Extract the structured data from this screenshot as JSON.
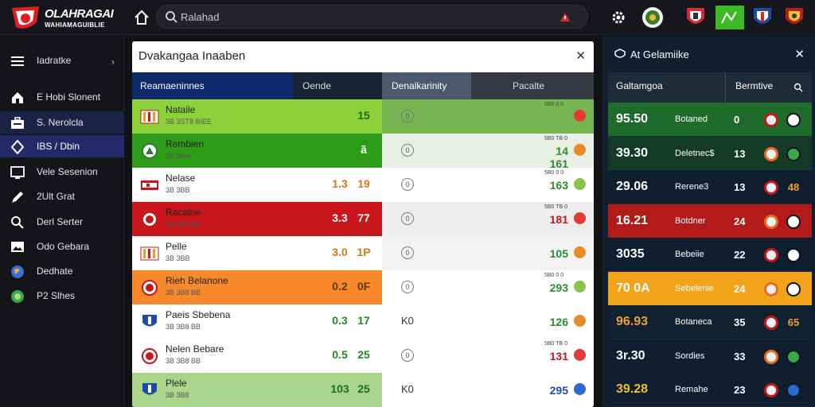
{
  "app": {
    "logo_line1": "OLAHRAGAI",
    "logo_line2": "WAHIAMAGUIBLIE"
  },
  "search": {
    "placeholder": "Ralahad"
  },
  "sidebar": {
    "items": [
      {
        "label": "Iadratke",
        "icon": "menu-icon"
      },
      {
        "label": "E Hobi Slonent",
        "icon": "home-icon"
      },
      {
        "label": "S. Nerolcla",
        "icon": "briefcase-icon"
      },
      {
        "label": "IBS / Dbin",
        "icon": "shield-icon"
      },
      {
        "label": "Vele Sesenion",
        "icon": "monitor-icon"
      },
      {
        "label": "2Ult Grat",
        "icon": "pen-icon"
      },
      {
        "label": "Derl Serter",
        "icon": "search-icon"
      },
      {
        "label": "Odo Gebara",
        "icon": "image-icon"
      },
      {
        "label": "Dedhate",
        "icon": "globe-icon"
      },
      {
        "label": "P2 Slhes",
        "icon": "globe-green-icon"
      }
    ]
  },
  "panel": {
    "title": "Dvakangaa Inaaben",
    "headers": [
      "Reamaeninnes",
      "Oende",
      "Denalkarinity",
      "Pacalte"
    ],
    "rows": [
      {
        "name": "Nataile",
        "sub": "3B 3ST8 BIEE",
        "v1": "",
        "v2": "15",
        "mark": "0",
        "odds_top": "5B0 0 0",
        "odds": "",
        "v_color": "#1f6b1f",
        "bg_left": "#8cd13a",
        "bg_right": "#76b550",
        "badge": "bars-icon",
        "odds_icon": "#e53935"
      },
      {
        "name": "Rembien",
        "sub": "3e 3ese",
        "v1": "",
        "v2": "ã",
        "mark": "0",
        "odds_top": "5B0 TB 0",
        "odds": "14 161",
        "v_color": "#ffffff",
        "bg_left": "#2e9c19",
        "bg_right": "#e6efe2",
        "badge": "club-green-icon",
        "odds_icon": "#e88a2a"
      },
      {
        "name": "Nelase",
        "sub": "3B 3BB",
        "v1": "1.3",
        "v2": "19",
        "mark": "0",
        "odds_top": "5B0 0 0",
        "odds": "163",
        "v_color": "#d4781c",
        "bg_left": "#ffffff",
        "bg_right": "#ffffff",
        "badge": "flag-icon",
        "odds_icon": "#8bc34a"
      },
      {
        "name": "Racalne",
        "sub": "3B 3B8 BB",
        "v1": "3.3",
        "v2": "77",
        "mark": "0",
        "odds_top": "5B0 TB 0",
        "odds": "181",
        "v_color": "#ffffff",
        "bg_left": "#c8161b",
        "bg_right": "#ededed",
        "badge": "club-red-icon",
        "odds_icon": "#e53935"
      },
      {
        "name": "Pelle",
        "sub": "3B 3BB",
        "v1": "3.0",
        "v2": "1P",
        "mark": "0",
        "odds_top": "",
        "odds": "105",
        "v_color": "#d4781c",
        "bg_left": "#ffffff",
        "bg_right": "#f2f2f2",
        "badge": "bars-icon",
        "odds_icon": "#e88a2a"
      },
      {
        "name": "Rieh Belanone",
        "sub": "3B 3B8 BB",
        "v1": "0.2",
        "v2": "0F",
        "mark": "0",
        "odds_top": "5B0 0 0",
        "odds": "293",
        "v_color": "#5a3a00",
        "bg_left": "#f7892c",
        "bg_right": "#ffffff",
        "badge": "club-red-icon",
        "odds_icon": "#8bc34a"
      },
      {
        "name": "Paeis Sbebena",
        "sub": "3B 3B8 BB",
        "v1": "0.3",
        "v2": "17",
        "mark": "K0",
        "odds_top": "",
        "odds": "126",
        "v_color": "#1f8b1f",
        "bg_left": "#ffffff",
        "bg_right": "#ffffff",
        "badge": "shield-blue-icon",
        "odds_icon": "#e88a2a"
      },
      {
        "name": "Nelen Bebare",
        "sub": "3B 3B8 BB",
        "v1": "0.5",
        "v2": "25",
        "mark": "0",
        "odds_top": "5B0 TB 0",
        "odds": "131",
        "v_color": "#1f8b1f",
        "bg_left": "#ffffff",
        "bg_right": "#ffffff",
        "badge": "club-red-icon",
        "odds_icon": "#e53935"
      },
      {
        "name": "Plele",
        "sub": "3B 3B8",
        "v1": "103",
        "v2": "25",
        "mark": "K0",
        "odds_top": "",
        "odds": "295",
        "v_color": "#1f6b1f",
        "bg_left": "#a9d68a",
        "bg_right": "#ffffff",
        "badge": "shield-blue-icon",
        "odds_icon": "#2a6bd1"
      }
    ]
  },
  "right": {
    "title": "At Gelamiike",
    "headers": [
      "Galtamgoa",
      "Bermtive"
    ],
    "rows": [
      {
        "value": "95.50",
        "name": "Botaned",
        "count": "0",
        "bg": "#1e6b2c",
        "color": "#ffffff",
        "end_color": "#ffffff",
        "end": ""
      },
      {
        "value": "39.30",
        "name": "Deletnec$",
        "count": "13",
        "bg": "#143a2a",
        "color": "#ffffff",
        "end_color": "#3fa64a",
        "end": ""
      },
      {
        "value": "29.06",
        "name": "Rerene3",
        "count": "13",
        "bg": "#0f1f30",
        "color": "#ffffff",
        "end_color": "#f0a030",
        "end": "48"
      },
      {
        "value": "16.21",
        "name": "Botdner",
        "count": "24",
        "bg": "#b31a1a",
        "color": "#ffffff",
        "end_color": "#ffffff",
        "end": ""
      },
      {
        "value": "3035",
        "name": "Bebeiie",
        "count": "22",
        "bg": "#0f1f30",
        "color": "#ffffff",
        "end_color": "#ffffff",
        "end": ""
      },
      {
        "value": "70 0A",
        "name": "Sebelenie",
        "count": "24",
        "bg": "#f2a31a",
        "color": "#ffffff",
        "end_color": "#ffffff",
        "end": ""
      },
      {
        "value": "96.93",
        "name": "Botaneca",
        "count": "35",
        "bg": "#10212f",
        "color": "#f0a030",
        "end_color": "#f0a030",
        "end": "65"
      },
      {
        "value": "3r.30",
        "name": "Sordies",
        "count": "33",
        "bg": "#0f1f30",
        "color": "#ffffff",
        "end_color": "#3fa64a",
        "end": ""
      },
      {
        "value": "39.28",
        "name": "Remahe",
        "count": "23",
        "bg": "#0f1f30",
        "color": "#f0c030",
        "end_color": "#2a6bd1",
        "end": ""
      }
    ]
  }
}
